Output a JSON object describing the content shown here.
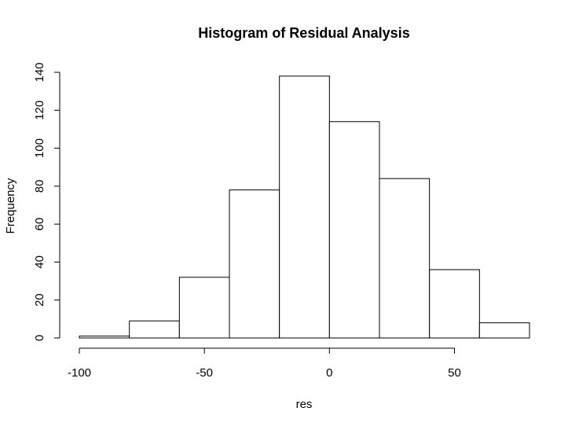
{
  "chart_data": {
    "type": "bar",
    "title": "Histogram of Residual Analysis",
    "xlabel": "res",
    "ylabel": "Frequency",
    "bin_edges": [
      -100,
      -80,
      -60,
      -40,
      -20,
      0,
      20,
      40,
      60,
      80
    ],
    "values": [
      1,
      9,
      32,
      78,
      138,
      114,
      84,
      36,
      8
    ],
    "x_ticks": [
      -100,
      -50,
      0,
      50
    ],
    "x_tick_labels": [
      "-100",
      "-50",
      "0",
      "50"
    ],
    "y_ticks": [
      0,
      20,
      40,
      60,
      80,
      100,
      120,
      140
    ],
    "y_tick_labels": [
      "0",
      "20",
      "40",
      "60",
      "80",
      "100",
      "120",
      "140"
    ],
    "xlim": [
      -100,
      80
    ],
    "ylim": [
      0,
      140
    ],
    "grid": false,
    "legend": "none",
    "colors": {
      "bar_fill": "#ffffff",
      "bar_stroke": "#000000",
      "axis": "#000000"
    }
  }
}
